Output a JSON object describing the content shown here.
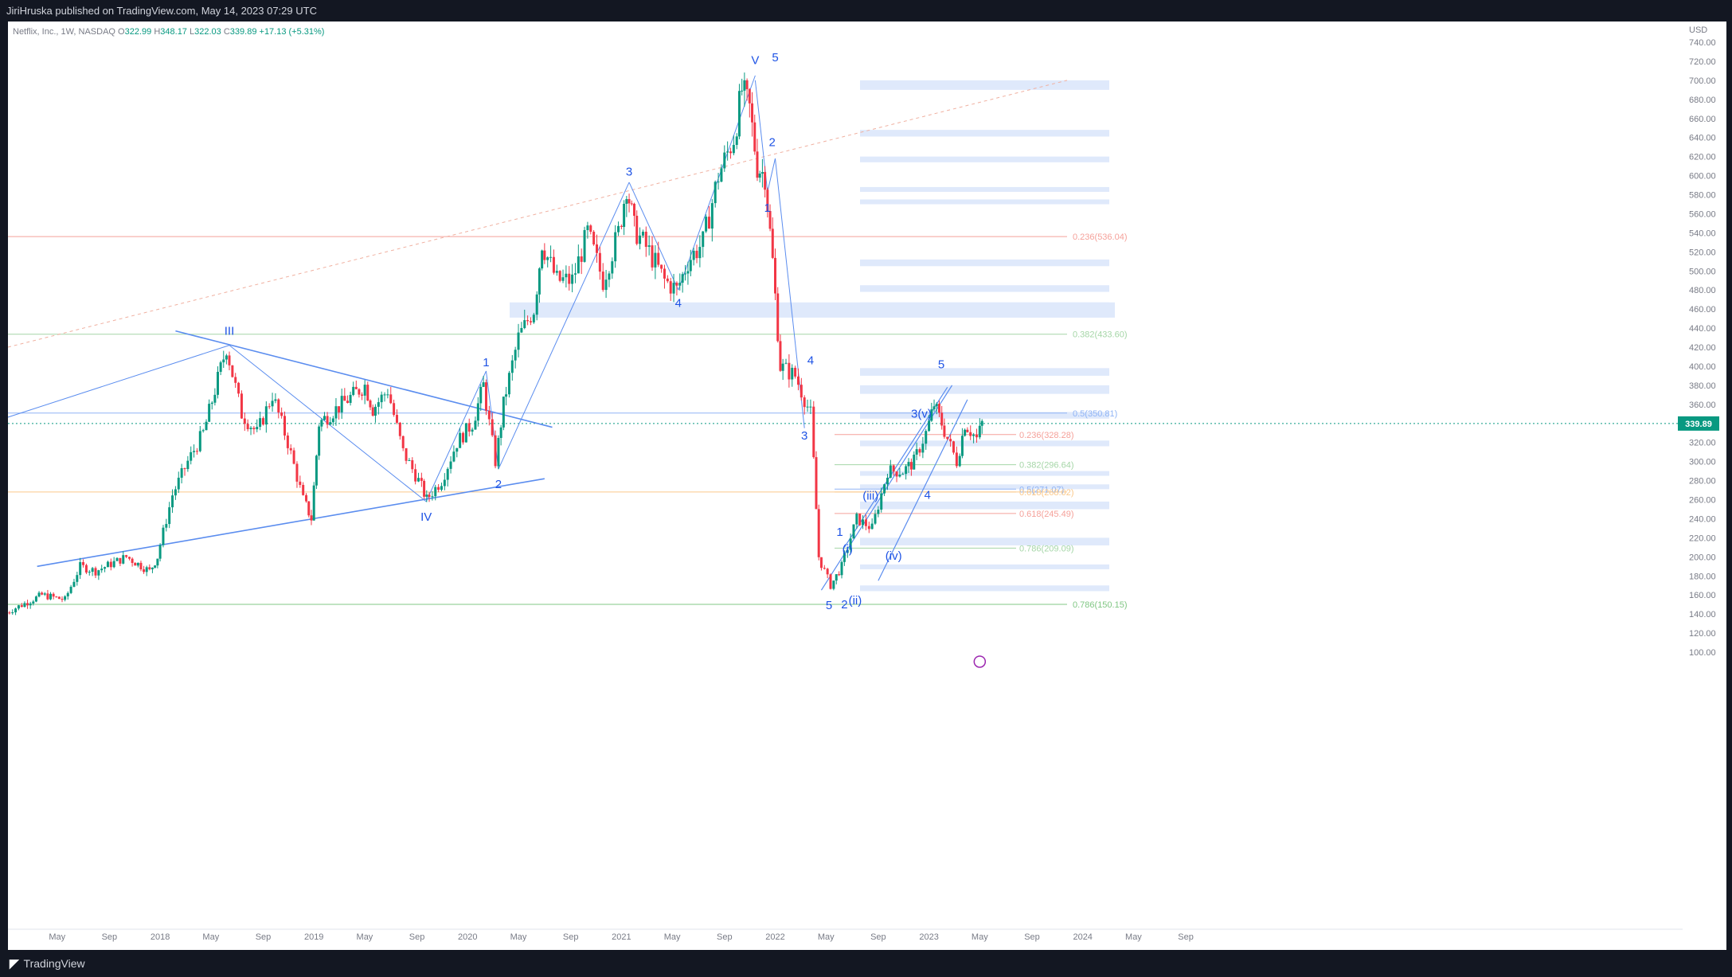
{
  "header": {
    "publisher": "JiriHruska published on TradingView.com, May 14, 2023 07:29 UTC"
  },
  "legend": {
    "symbol": "Netflix, Inc., 1W, NASDAQ",
    "o_label": "O",
    "o": "322.99",
    "h_label": "H",
    "h": "348.17",
    "l_label": "L",
    "l": "322.03",
    "c_label": "C",
    "c": "339.89",
    "change": "+17.13 (+5.31%)"
  },
  "footer": {
    "brand": "TradingView"
  },
  "colors": {
    "up": "#089981",
    "down": "#f23645",
    "wave": "#1e53e5",
    "zone": "#dfe9fb",
    "trend": "#5b8def"
  },
  "chart_data": {
    "type": "candlestick",
    "title": "",
    "currency": "USD",
    "current_price": "339.89",
    "ylim": [
      80,
      750
    ],
    "y_ticks": [
      "100.00",
      "120.00",
      "140.00",
      "160.00",
      "180.00",
      "200.00",
      "220.00",
      "240.00",
      "260.00",
      "280.00",
      "300.00",
      "320.00",
      "340.00",
      "360.00",
      "380.00",
      "400.00",
      "420.00",
      "440.00",
      "460.00",
      "480.00",
      "500.00",
      "520.00",
      "540.00",
      "560.00",
      "580.00",
      "600.00",
      "620.00",
      "640.00",
      "660.00",
      "680.00",
      "700.00",
      "720.00",
      "740.00"
    ],
    "x_ticks": [
      {
        "label": "May",
        "t": 2017.33
      },
      {
        "label": "Sep",
        "t": 2017.67
      },
      {
        "label": "2018",
        "t": 2018.0
      },
      {
        "label": "May",
        "t": 2018.33
      },
      {
        "label": "Sep",
        "t": 2018.67
      },
      {
        "label": "2019",
        "t": 2019.0
      },
      {
        "label": "May",
        "t": 2019.33
      },
      {
        "label": "Sep",
        "t": 2019.67
      },
      {
        "label": "2020",
        "t": 2020.0
      },
      {
        "label": "May",
        "t": 2020.33
      },
      {
        "label": "Sep",
        "t": 2020.67
      },
      {
        "label": "2021",
        "t": 2021.0
      },
      {
        "label": "May",
        "t": 2021.33
      },
      {
        "label": "Sep",
        "t": 2021.67
      },
      {
        "label": "2022",
        "t": 2022.0
      },
      {
        "label": "May",
        "t": 2022.33
      },
      {
        "label": "Sep",
        "t": 2022.67
      },
      {
        "label": "2023",
        "t": 2023.0
      },
      {
        "label": "May",
        "t": 2023.33
      },
      {
        "label": "Sep",
        "t": 2023.67
      },
      {
        "label": "2024",
        "t": 2024.0
      },
      {
        "label": "May",
        "t": 2024.33
      },
      {
        "label": "Sep",
        "t": 2024.67
      }
    ],
    "price_path": [
      [
        2017.0,
        140
      ],
      [
        2017.1,
        148
      ],
      [
        2017.25,
        160
      ],
      [
        2017.4,
        155
      ],
      [
        2017.5,
        190
      ],
      [
        2017.6,
        185
      ],
      [
        2017.8,
        200
      ],
      [
        2017.95,
        185
      ],
      [
        2018.0,
        200
      ],
      [
        2018.1,
        265
      ],
      [
        2018.2,
        300
      ],
      [
        2018.3,
        330
      ],
      [
        2018.45,
        420
      ],
      [
        2018.55,
        350
      ],
      [
        2018.65,
        330
      ],
      [
        2018.75,
        370
      ],
      [
        2018.85,
        320
      ],
      [
        2018.95,
        260
      ],
      [
        2019.0,
        240
      ],
      [
        2019.05,
        340
      ],
      [
        2019.2,
        360
      ],
      [
        2019.35,
        380
      ],
      [
        2019.4,
        355
      ],
      [
        2019.5,
        375
      ],
      [
        2019.6,
        310
      ],
      [
        2019.7,
        280
      ],
      [
        2019.75,
        260
      ],
      [
        2019.85,
        280
      ],
      [
        2019.95,
        320
      ],
      [
        2020.05,
        340
      ],
      [
        2020.12,
        380
      ],
      [
        2020.2,
        300
      ],
      [
        2020.25,
        360
      ],
      [
        2020.35,
        430
      ],
      [
        2020.45,
        460
      ],
      [
        2020.5,
        530
      ],
      [
        2020.6,
        490
      ],
      [
        2020.7,
        490
      ],
      [
        2020.8,
        540
      ],
      [
        2020.9,
        490
      ],
      [
        2021.0,
        540
      ],
      [
        2021.05,
        590
      ],
      [
        2021.1,
        545
      ],
      [
        2021.2,
        520
      ],
      [
        2021.3,
        490
      ],
      [
        2021.38,
        480
      ],
      [
        2021.45,
        510
      ],
      [
        2021.55,
        530
      ],
      [
        2021.65,
        600
      ],
      [
        2021.75,
        640
      ],
      [
        2021.8,
        690
      ],
      [
        2021.85,
        670
      ],
      [
        2021.9,
        610
      ],
      [
        2021.95,
        600
      ],
      [
        2022.0,
        510
      ],
      [
        2022.05,
        400
      ],
      [
        2022.15,
        390
      ],
      [
        2022.25,
        350
      ],
      [
        2022.3,
        200
      ],
      [
        2022.38,
        170
      ],
      [
        2022.45,
        190
      ],
      [
        2022.55,
        240
      ],
      [
        2022.65,
        230
      ],
      [
        2022.75,
        290
      ],
      [
        2022.85,
        290
      ],
      [
        2022.92,
        300
      ],
      [
        2023.0,
        330
      ],
      [
        2023.05,
        360
      ],
      [
        2023.1,
        340
      ],
      [
        2023.2,
        300
      ],
      [
        2023.25,
        340
      ],
      [
        2023.33,
        324
      ],
      [
        2023.36,
        340
      ]
    ],
    "horizontal_levels": [
      {
        "value": 536.04,
        "color": "#f5a19a"
      },
      {
        "value": 433.6,
        "color": "#a5d6a7"
      },
      {
        "value": 350.81,
        "color": "#90b4f5"
      },
      {
        "value": 268.0,
        "color": "#fbc98a"
      },
      {
        "value": 150.15,
        "color": "#81c784"
      }
    ],
    "right_fib_labels": [
      {
        "text": "0.236(536.04)",
        "value": 536.04,
        "color": "#f5a19a"
      },
      {
        "text": "0.382(433.60)",
        "value": 433.6,
        "color": "#a5d6a7"
      },
      {
        "text": "0.5(350.81)",
        "value": 350.81,
        "color": "#90b4f5"
      },
      {
        "text": "0.786(150.15)",
        "value": 150.15,
        "color": "#81c784"
      }
    ],
    "inner_fib_labels": [
      {
        "text": "0.236(328.28)",
        "value": 328.28,
        "color": "#f5a19a"
      },
      {
        "text": "0.382(296.64)",
        "value": 296.64,
        "color": "#a5d6a7"
      },
      {
        "text": "0.5(271.07)",
        "value": 271.07,
        "color": "#90b4f5"
      },
      {
        "text": "0.618(268.02)",
        "value": 268.02,
        "color": "#fbc98a"
      },
      {
        "text": "0.618(245.49)",
        "value": 245.49,
        "color": "#f5a19a"
      },
      {
        "text": "0.786(209.09)",
        "value": 209.09,
        "color": "#a5d6a7"
      }
    ],
    "zones": [
      [
        690,
        700
      ],
      [
        641,
        648
      ],
      [
        614,
        620
      ],
      [
        583,
        588
      ],
      [
        570,
        575
      ],
      [
        505,
        512
      ],
      [
        478,
        485
      ],
      [
        451,
        467
      ],
      [
        390,
        398
      ],
      [
        371,
        380
      ],
      [
        345,
        352
      ],
      [
        316,
        322
      ],
      [
        285,
        290
      ],
      [
        271,
        276
      ],
      [
        250,
        258
      ],
      [
        212,
        220
      ],
      [
        187,
        192
      ],
      [
        164,
        170
      ]
    ],
    "wave_labels": [
      {
        "text": "III",
        "t": 2018.45,
        "p": 433
      },
      {
        "text": "IV",
        "t": 2019.73,
        "p": 238
      },
      {
        "text": "V",
        "t": 2021.87,
        "p": 717
      },
      {
        "text": "5",
        "t": 2022.0,
        "p": 720
      },
      {
        "text": "1",
        "t": 2020.12,
        "p": 400
      },
      {
        "text": "2",
        "t": 2020.2,
        "p": 272
      },
      {
        "text": "3",
        "t": 2021.05,
        "p": 600
      },
      {
        "text": "4",
        "t": 2021.37,
        "p": 462
      },
      {
        "text": "1",
        "t": 2021.95,
        "p": 562
      },
      {
        "text": "2",
        "t": 2021.98,
        "p": 631
      },
      {
        "text": "3",
        "t": 2022.19,
        "p": 323
      },
      {
        "text": "4",
        "t": 2022.23,
        "p": 402
      },
      {
        "text": "5",
        "t": 2022.35,
        "p": 145
      },
      {
        "text": "1",
        "t": 2022.42,
        "p": 222
      },
      {
        "text": "2",
        "t": 2022.45,
        "p": 146
      },
      {
        "text": "(i)",
        "t": 2022.47,
        "p": 204
      },
      {
        "text": "(ii)",
        "t": 2022.52,
        "p": 150
      },
      {
        "text": "(iii)",
        "t": 2022.62,
        "p": 260
      },
      {
        "text": "(iv)",
        "t": 2022.77,
        "p": 197
      },
      {
        "text": "3(v)",
        "t": 2022.95,
        "p": 346
      },
      {
        "text": "4",
        "t": 2022.99,
        "p": 261
      },
      {
        "text": "5",
        "t": 2023.08,
        "p": 398
      }
    ]
  }
}
